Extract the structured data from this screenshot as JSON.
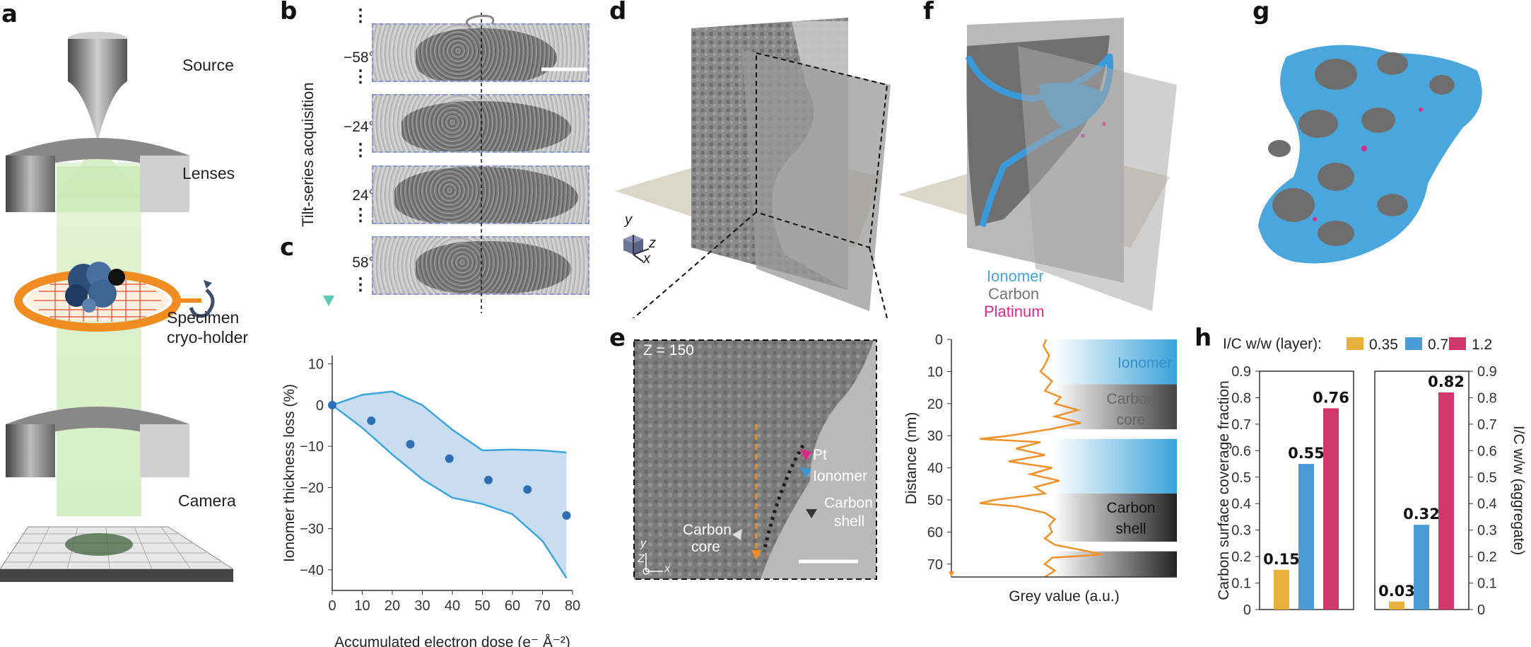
{
  "panels": {
    "a": "a",
    "b": "b",
    "c": "c",
    "d": "d",
    "e": "e",
    "f": "f",
    "g": "g",
    "h": "h"
  },
  "panel_a": {
    "source": "Source",
    "lenses": "Lenses",
    "specimen_line1": "Specimen",
    "specimen_line2": "cryo-holder",
    "camera": "Camera"
  },
  "panel_b": {
    "axis_label": "Tilt-series acquisition",
    "angles": [
      "−58°",
      "−24°",
      "24°",
      "58°"
    ],
    "dots": "⋮"
  },
  "panel_d": {
    "axis_y": "y",
    "axis_z": "z",
    "axis_x": "x"
  },
  "panel_e": {
    "slice_label": "Z = 150",
    "pt": "Pt",
    "ionomer": "Ionomer",
    "carbon_shell_1": "Carbon",
    "carbon_shell_2": "shell",
    "carbon_core_1": "Carbon",
    "carbon_core_2": "core",
    "axis_y": "y",
    "axis_z": "Z",
    "axis_x": "x"
  },
  "panel_f": {
    "legend_ionomer": "Ionomer",
    "legend_carbon": "Carbon",
    "legend_platinum": "Platinum",
    "colors": {
      "ionomer": "#3a9ad9",
      "carbon": "#707070",
      "platinum": "#e0288c"
    }
  },
  "panel_f_profile": {
    "bands": [
      "Ionomer",
      "Carbon core",
      "Carbon shell"
    ],
    "band_carbon_core_1": "Carbon",
    "band_carbon_core_2": "core",
    "band_carbon_shell_1": "Carbon",
    "band_carbon_shell_2": "shell"
  },
  "chart_data": [
    {
      "id": "c",
      "type": "scatter",
      "xlabel": "Accumulated electron dose (e⁻ Å⁻²)",
      "ylabel": "Ionomer thickness loss (%)",
      "xlim": [
        0,
        80
      ],
      "ylim": [
        -45,
        12
      ],
      "xticks": [
        "0",
        "10",
        "20",
        "30",
        "40",
        "50",
        "60",
        "70",
        "80"
      ],
      "yticks": [
        "10",
        "0",
        "−10",
        "−20",
        "−30",
        "−40"
      ],
      "x": [
        0,
        13,
        26,
        39,
        52,
        65,
        78
      ],
      "y": [
        0,
        -3.8,
        -9.5,
        -13,
        -18.2,
        -20.5,
        -26.8
      ],
      "band_upper": [
        [
          0,
          0
        ],
        [
          10,
          2.5
        ],
        [
          20,
          3.3
        ],
        [
          30,
          0
        ],
        [
          40,
          -6
        ],
        [
          50,
          -11
        ],
        [
          60,
          -10.8
        ],
        [
          70,
          -11
        ],
        [
          78,
          -11.5
        ]
      ],
      "band_lower": [
        [
          0,
          0
        ],
        [
          10,
          -5.5
        ],
        [
          20,
          -12
        ],
        [
          30,
          -18
        ],
        [
          40,
          -22.5
        ],
        [
          50,
          -24
        ],
        [
          60,
          -26.5
        ],
        [
          70,
          -33
        ],
        [
          78,
          -42
        ]
      ],
      "colors": {
        "point": "#2f6eb5",
        "band": "#c9ddf1",
        "edge": "#3aa6dd"
      }
    },
    {
      "id": "f-profile",
      "type": "line",
      "xlabel": "Grey value (a.u.)",
      "ylabel": "Distance (nm)",
      "ylim": [
        0,
        74
      ],
      "yticks": [
        "0",
        "10",
        "20",
        "30",
        "40",
        "50",
        "60",
        "70"
      ],
      "distance": [
        0,
        2,
        5,
        8,
        10,
        13,
        16,
        18,
        20,
        22,
        24,
        26,
        28,
        30,
        31,
        32,
        34,
        36,
        38,
        40,
        42,
        44,
        46,
        48,
        50,
        51,
        52,
        54,
        56,
        58,
        60,
        62,
        64,
        66,
        67,
        68,
        70,
        72,
        74
      ],
      "grey": [
        0.56,
        0.54,
        0.58,
        0.55,
        0.52,
        0.6,
        0.55,
        0.66,
        0.62,
        0.78,
        0.62,
        0.8,
        0.58,
        0.3,
        0.1,
        0.52,
        0.35,
        0.55,
        0.3,
        0.6,
        0.45,
        0.65,
        0.48,
        0.55,
        0.2,
        0.1,
        0.35,
        0.55,
        0.62,
        0.58,
        0.6,
        0.55,
        0.62,
        0.85,
        0.95,
        0.6,
        0.55,
        0.62,
        0.55
      ],
      "color": "#f0912a"
    },
    {
      "id": "h",
      "type": "bar",
      "legend_title": "I/C w/w (layer):",
      "legend": [
        "0.35",
        "0.7",
        "1.2"
      ],
      "colors": [
        "#e8b03c",
        "#4a9bd6",
        "#d0376b"
      ],
      "ylabel_left": "Carbon surface coverage fraction",
      "ylabel_right": "I/C w/w (aggregate)",
      "ylim": [
        0,
        0.9
      ],
      "yticks": [
        "0",
        "0.1",
        "0.2",
        "0.3",
        "0.4",
        "0.5",
        "0.6",
        "0.7",
        "0.8",
        "0.9"
      ],
      "series": [
        {
          "name": "layer",
          "values": [
            0.15,
            0.55,
            0.76
          ],
          "labels": [
            "0.15",
            "0.55",
            "0.76"
          ]
        },
        {
          "name": "aggregate",
          "values": [
            0.03,
            0.32,
            0.82
          ],
          "labels": [
            "0.03",
            "0.32",
            "0.82"
          ]
        }
      ]
    }
  ]
}
